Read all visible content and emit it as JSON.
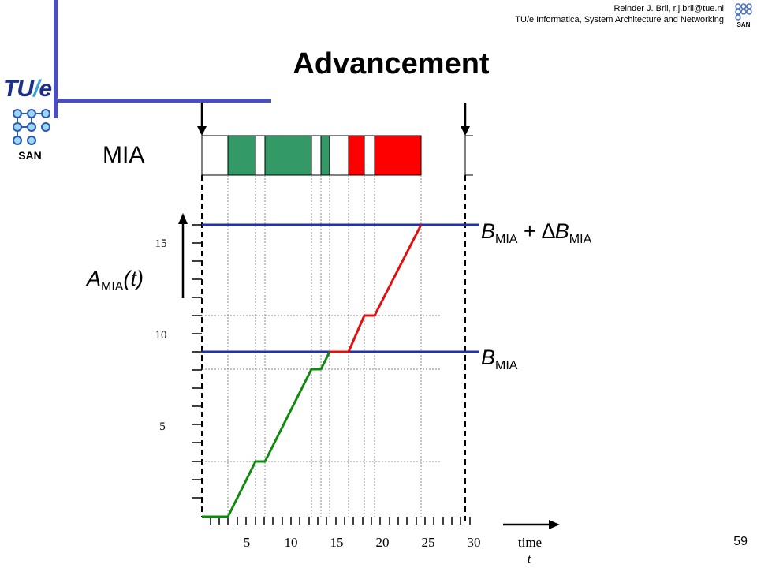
{
  "header": {
    "author": "Reinder J. Bril, r.j.bril@tue.nl",
    "department": "TU/e Informatica, System Architecture and Networking"
  },
  "title": "Advancement",
  "page_number": "59",
  "logo": {
    "wordmark_a": "TU",
    "wordmark_slash": "/",
    "wordmark_b": "e",
    "group": "SAN"
  },
  "mia_label": "MIA",
  "labels": {
    "b_plus_delta": {
      "base": "B",
      "sub": "MIA",
      "op": " + ",
      "delta": "∆",
      "base2": "B",
      "sub2": "MIA"
    },
    "b": {
      "base": "B",
      "sub": "MIA"
    },
    "a_of_t": {
      "base": "A",
      "sub": "MIA",
      "arg": "(t)"
    }
  },
  "axes": {
    "x_ticks": [
      "5",
      "10",
      "15",
      "20",
      "25",
      "30"
    ],
    "y_ticks": [
      "5",
      "10",
      "15"
    ],
    "x_label": "time",
    "x_symbol": "t"
  },
  "colors": {
    "blue": "#2233aa",
    "green": "#0f8a0f",
    "red": "#e01010",
    "bar_green": "#339966",
    "bar_red": "#ff0000"
  }
}
